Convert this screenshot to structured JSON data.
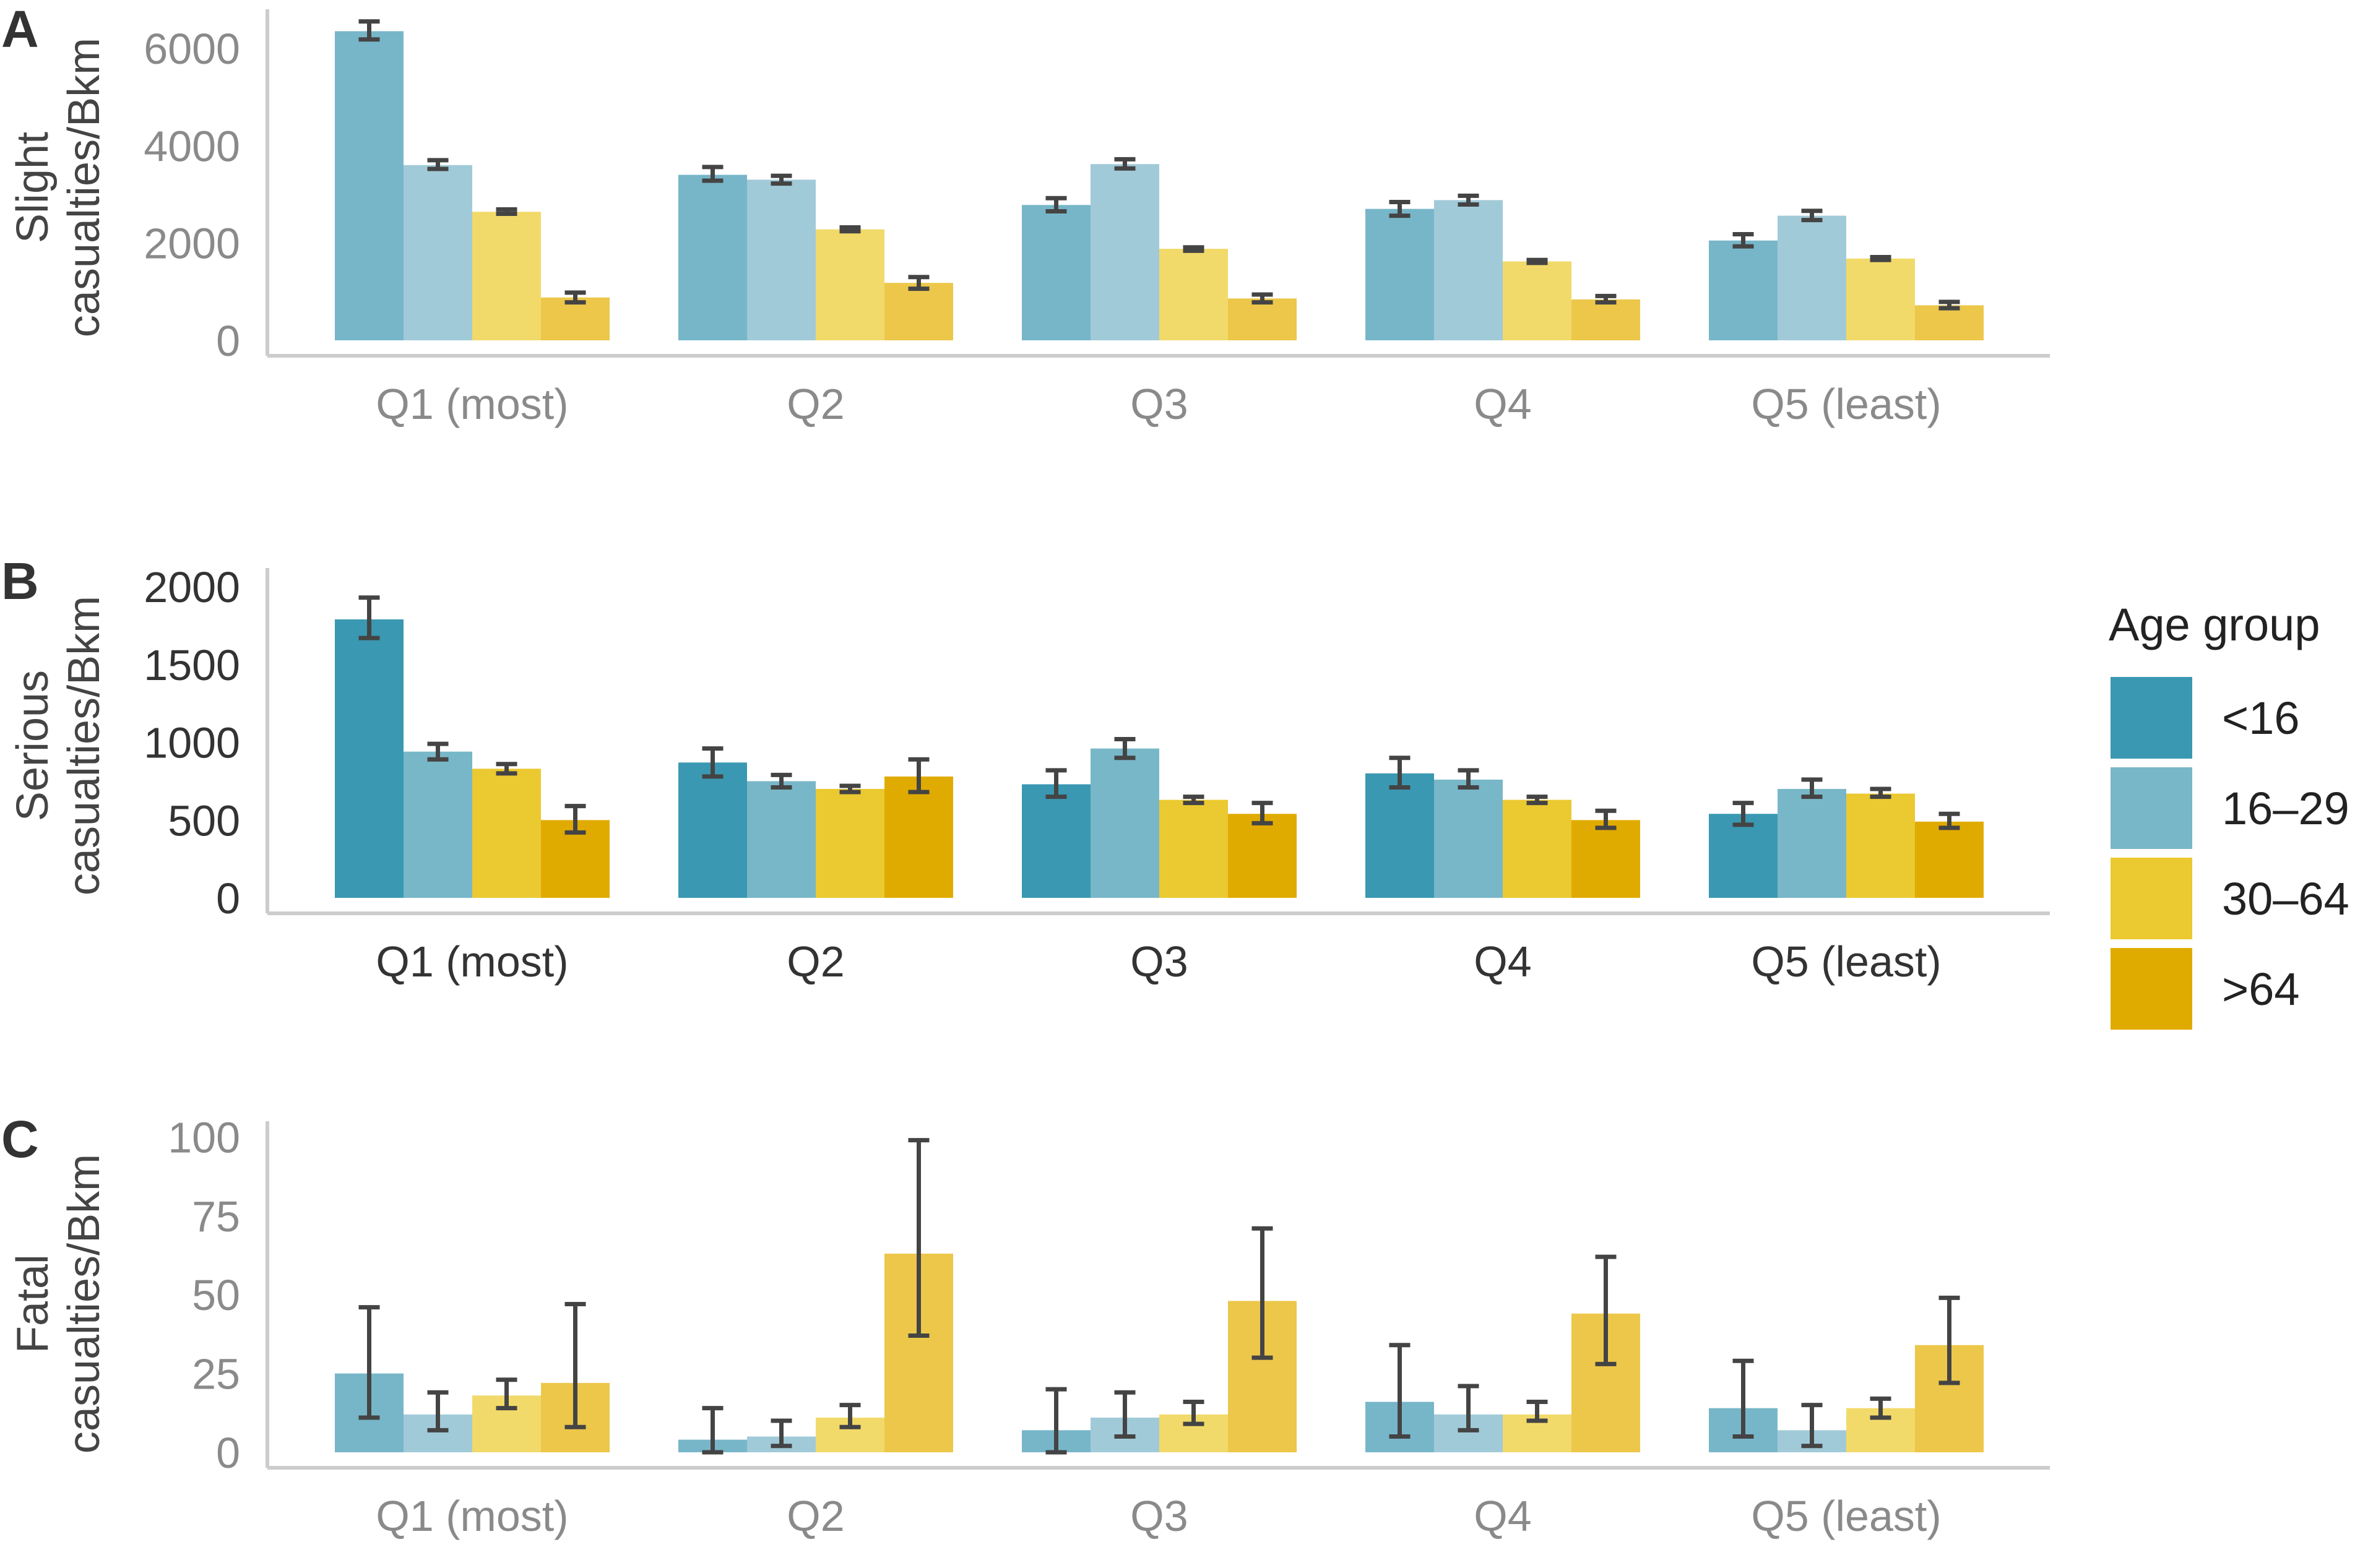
{
  "chart_data": [
    {
      "type": "bar",
      "panel_label": "A",
      "ylabel": [
        "Slight",
        "casualties/Bkm"
      ],
      "categories": [
        "Q1 (most)",
        "Q2",
        "Q3",
        "Q4",
        "Q5 (least)"
      ],
      "ylim": [
        0,
        6800
      ],
      "yticks": [
        0,
        2000,
        4000,
        6000
      ],
      "highlight": false,
      "series": [
        {
          "name": "<16",
          "values": [
            6350,
            3400,
            2780,
            2700,
            2050
          ],
          "err_low": [
            6180,
            3280,
            2650,
            2560,
            1930
          ],
          "err_high": [
            6550,
            3560,
            2920,
            2840,
            2180
          ]
        },
        {
          "name": "16–29",
          "values": [
            3600,
            3300,
            3620,
            2880,
            2560
          ],
          "err_low": [
            3520,
            3220,
            3530,
            2790,
            2470
          ],
          "err_high": [
            3700,
            3380,
            3720,
            2970,
            2660
          ]
        },
        {
          "name": "30–64",
          "values": [
            2640,
            2280,
            1880,
            1620,
            1680
          ],
          "err_low": [
            2600,
            2240,
            1840,
            1590,
            1650
          ],
          "err_high": [
            2690,
            2320,
            1910,
            1650,
            1710
          ]
        },
        {
          "name": ">64",
          "values": [
            880,
            1180,
            860,
            840,
            720
          ],
          "err_low": [
            780,
            1060,
            780,
            780,
            660
          ],
          "err_high": [
            980,
            1300,
            940,
            910,
            790
          ]
        }
      ]
    },
    {
      "type": "bar",
      "panel_label": "B",
      "ylabel": [
        "Serious",
        "casualties/Bkm"
      ],
      "categories": [
        "Q1 (most)",
        "Q2",
        "Q3",
        "Q4",
        "Q5 (least)"
      ],
      "ylim": [
        0,
        2120
      ],
      "yticks": [
        0,
        500,
        1000,
        1500,
        2000
      ],
      "highlight": true,
      "series": [
        {
          "name": "<16",
          "values": [
            1790,
            870,
            730,
            800,
            540
          ],
          "err_low": [
            1670,
            780,
            650,
            710,
            470
          ],
          "err_high": [
            1930,
            960,
            820,
            900,
            610
          ]
        },
        {
          "name": "16–29",
          "values": [
            940,
            750,
            960,
            760,
            700
          ],
          "err_low": [
            890,
            710,
            900,
            710,
            650
          ],
          "err_high": [
            990,
            790,
            1020,
            820,
            760
          ]
        },
        {
          "name": "30–64",
          "values": [
            830,
            700,
            630,
            630,
            670
          ],
          "err_low": [
            800,
            680,
            610,
            610,
            650
          ],
          "err_high": [
            860,
            720,
            650,
            650,
            700
          ]
        },
        {
          "name": ">64",
          "values": [
            500,
            780,
            540,
            500,
            490
          ],
          "err_low": [
            420,
            680,
            480,
            450,
            450
          ],
          "err_high": [
            590,
            890,
            610,
            560,
            540
          ]
        }
      ]
    },
    {
      "type": "bar",
      "panel_label": "C",
      "ylabel": [
        "Fatal",
        "casualties/Bkm"
      ],
      "categories": [
        "Q1 (most)",
        "Q2",
        "Q3",
        "Q4",
        "Q5 (least)"
      ],
      "ylim": [
        0,
        105
      ],
      "yticks": [
        0,
        25,
        50,
        75,
        100
      ],
      "highlight": false,
      "series": [
        {
          "name": "<16",
          "values": [
            25,
            4,
            7,
            16,
            14
          ],
          "err_low": [
            11,
            0,
            0,
            5,
            5
          ],
          "err_high": [
            46,
            14,
            20,
            34,
            29
          ]
        },
        {
          "name": "16–29",
          "values": [
            12,
            5,
            11,
            12,
            7
          ],
          "err_low": [
            7,
            2,
            5,
            7,
            2
          ],
          "err_high": [
            19,
            10,
            19,
            21,
            15
          ]
        },
        {
          "name": "30–64",
          "values": [
            18,
            11,
            12,
            12,
            14
          ],
          "err_low": [
            14,
            8,
            9,
            10,
            11
          ],
          "err_high": [
            23,
            15,
            16,
            16,
            17
          ]
        },
        {
          "name": ">64",
          "values": [
            22,
            63,
            48,
            44,
            34
          ],
          "err_low": [
            8,
            37,
            30,
            28,
            22
          ],
          "err_high": [
            47,
            99,
            71,
            62,
            49
          ]
        }
      ]
    }
  ],
  "legend": {
    "title": "Age group",
    "placement": "right",
    "items": [
      {
        "label": "<16",
        "color": "#3a98b2"
      },
      {
        "label": "16–29",
        "color": "#78b7c8"
      },
      {
        "label": "30–64",
        "color": "#ebc930"
      },
      {
        "label": ">64",
        "color": "#e0ab00"
      }
    ]
  },
  "colors": {
    "full": [
      "#3a98b2",
      "#78b7c8",
      "#ebc930",
      "#e0ab00"
    ],
    "muted": [
      "#77b6c9",
      "#a1cad8",
      "#f2da6a",
      "#ecc74a"
    ],
    "error_bar": "#444444",
    "axis": "#cccccc",
    "tick_text_muted": "#8a8a8a",
    "tick_text_strong": "#333333"
  }
}
